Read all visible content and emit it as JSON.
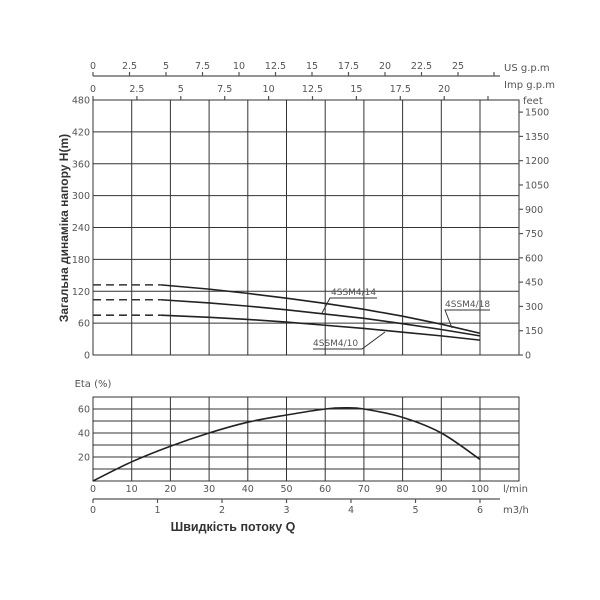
{
  "chart_data": [
    {
      "type": "line",
      "title": "",
      "xlabel": "Швидкість потоку Q",
      "ylabel": "Загальна динаміка напору H(m)",
      "x_unit": "l/min",
      "x": [
        17.5,
        30,
        40,
        50,
        60,
        70,
        80,
        90,
        100
      ],
      "xlim": [
        0,
        110
      ],
      "ylim": [
        0,
        480
      ],
      "yticks": [
        0,
        60,
        120,
        180,
        240,
        300,
        360,
        420,
        480
      ],
      "right_axis": {
        "label": "feet",
        "ticks": [
          0,
          150,
          300,
          450,
          600,
          750,
          900,
          1050,
          1200,
          1350,
          1500
        ]
      },
      "top_axes": [
        {
          "label": "US g.p.m",
          "ticks": [
            "0",
            "2.5",
            "5",
            "7.5",
            "10",
            "12.5",
            "15",
            "17.5",
            "20",
            "22.5",
            "25"
          ]
        },
        {
          "label": "Imp g.p.m",
          "ticks": [
            "0",
            "2.5",
            "5",
            "7.5",
            "10",
            "12.5",
            "15",
            "17.5",
            "20"
          ]
        }
      ],
      "series": [
        {
          "name": "4SSM4/18",
          "values": [
            132,
            124,
            116,
            107,
            97,
            86,
            73,
            58,
            41
          ],
          "dashed_extension_to_zero": true
        },
        {
          "name": "4SSM4/14",
          "values": [
            104,
            98,
            92,
            85,
            77,
            69,
            59,
            48,
            36
          ],
          "dashed_extension_to_zero": true
        },
        {
          "name": "4SSM4/10",
          "values": [
            75,
            71,
            67,
            62,
            56,
            50,
            43,
            36,
            28
          ],
          "dashed_extension_to_zero": true
        }
      ],
      "grid": true,
      "legend": "inline labels"
    },
    {
      "type": "line",
      "title": "",
      "ylabel": "Eta (%)",
      "xlabel": "Швидкість потоку Q",
      "x_unit": "l/min",
      "x_secondary_unit": "m3/h",
      "x": [
        0,
        10,
        20,
        30,
        40,
        50,
        60,
        65,
        70,
        80,
        90,
        100
      ],
      "xlim": [
        0,
        110
      ],
      "ylim": [
        0,
        70
      ],
      "yticks": [
        0,
        20,
        40,
        60
      ],
      "xticks": [
        0,
        10,
        20,
        30,
        40,
        50,
        60,
        70,
        80,
        90,
        100
      ],
      "x_secondary_ticks": [
        0,
        1,
        2,
        3,
        4,
        5,
        6
      ],
      "series": [
        {
          "name": "Eta",
          "values": [
            0,
            16,
            29,
            40,
            49,
            55,
            60,
            61,
            60,
            53,
            40,
            18
          ]
        }
      ],
      "grid": true
    }
  ],
  "head_chart": {
    "ylabel": "Загальна динаміка напору H(m)",
    "right_unit": "feet",
    "us_gpm_label": "US g.p.m",
    "imp_gpm_label": "Imp g.p.m",
    "labels": {
      "s18": "4SSM4/18",
      "s14": "4SSM4/14",
      "s10": "4SSM4/10"
    }
  },
  "eff_chart": {
    "ylabel": "Eta (%)",
    "unit_lmin": "l/min",
    "unit_m3h": "m3/h",
    "xtitle": "Швидкість потоку Q"
  }
}
